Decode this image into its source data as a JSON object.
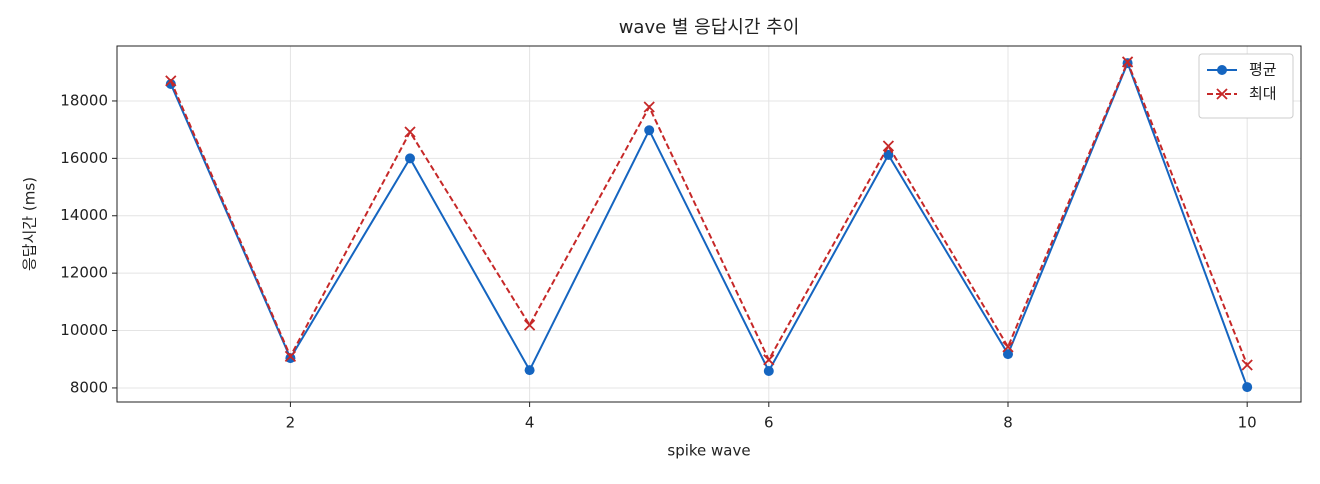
{
  "chart_data": {
    "type": "line",
    "title": "wave 별 응답시간 추이",
    "x_label": "spike wave",
    "y_label": "응답시간 (ms)",
    "x": [
      1,
      2,
      3,
      4,
      5,
      6,
      7,
      8,
      9,
      10
    ],
    "series": [
      {
        "name": "평균",
        "color": "#1565c0",
        "marker": "circle",
        "dash": "solid",
        "values": [
          18590,
          9040,
          16000,
          8620,
          16980,
          8590,
          16120,
          9180,
          19320,
          8030
        ]
      },
      {
        "name": "최대",
        "color": "#c62828",
        "marker": "x",
        "dash": "dashed",
        "values": [
          18700,
          9100,
          16920,
          10190,
          17790,
          8980,
          16430,
          9430,
          19360,
          8800
        ]
      }
    ],
    "xlim": [
      0.55,
      10.45
    ],
    "xticks": [
      2,
      4,
      6,
      8,
      10
    ],
    "ylim": [
      7510,
      19915
    ],
    "yticks": [
      8000,
      10000,
      12000,
      14000,
      16000,
      18000
    ],
    "grid": true,
    "legend": "upper-right"
  }
}
